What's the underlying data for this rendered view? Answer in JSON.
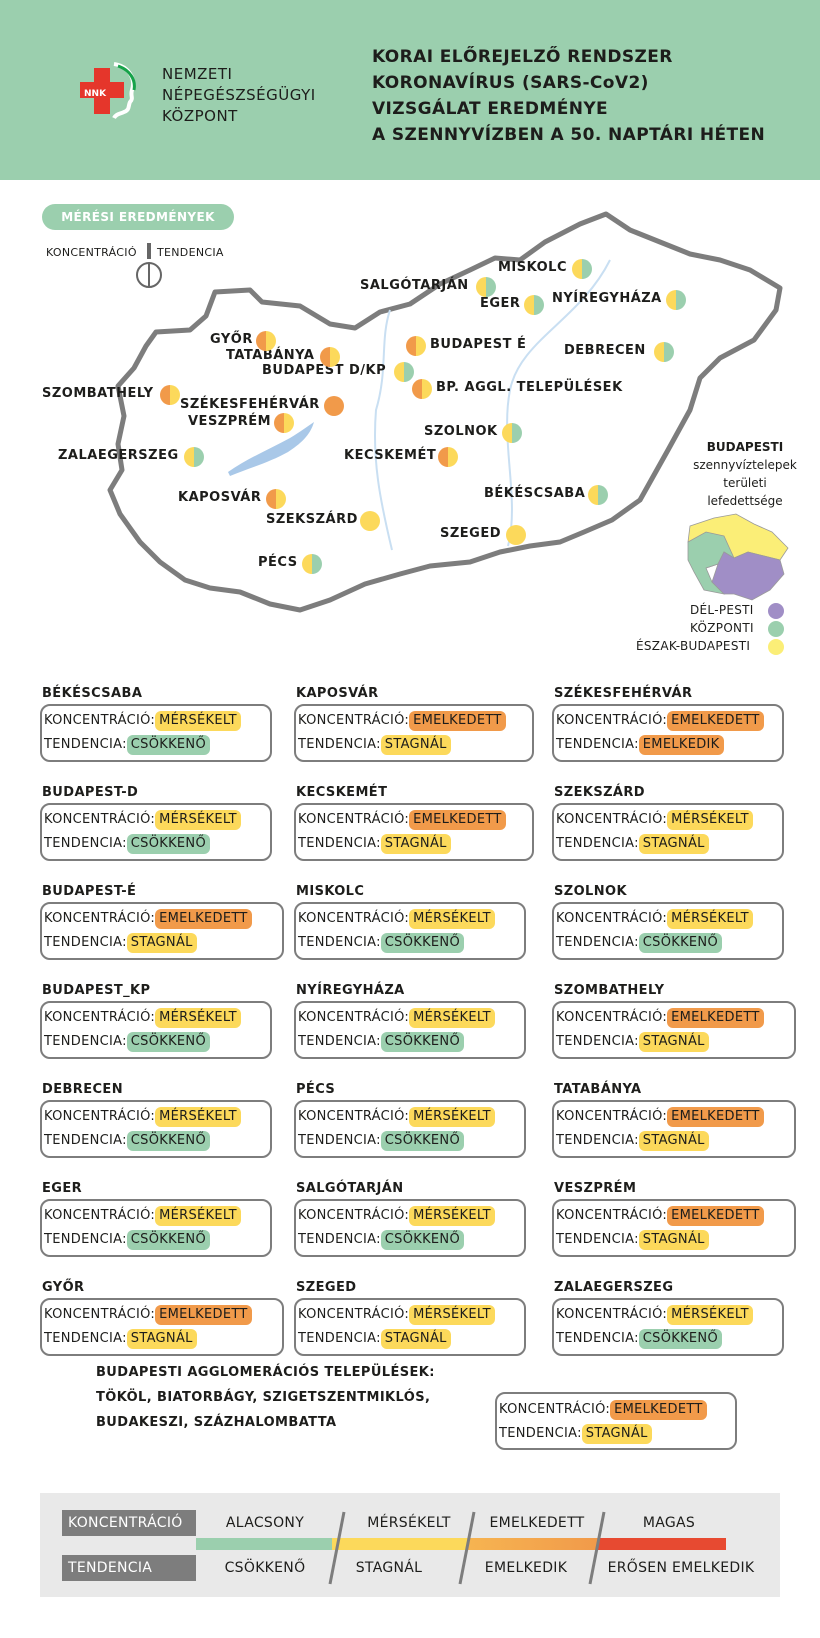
{
  "header": {
    "org_lines": [
      "NEMZETI",
      "NÉPEGÉSZSÉGÜGYI",
      "KÖZPONT"
    ],
    "logo_text": "NNK",
    "title_lines": [
      "KORAI ELŐREJELZŐ RENDSZER",
      "KORONAVÍRUS (SARS-CoV2)",
      "VIZSGÁLAT EREDMÉNYE",
      "A SZENNYVÍZBEN A 50. NAPTÁRI HÉTEN"
    ]
  },
  "map_key": {
    "pill": "MÉRÉSI EREDMÉNYEK",
    "left_label": "KONCENTRÁCIÓ",
    "right_label": "TENDENCIA"
  },
  "colors": {
    "alacsony": "#9bcfae",
    "mersekelt": "#fcd95b",
    "emelkedett": "#f19a4a",
    "magas": "#e74a31",
    "header_green": "#9bcfae",
    "del_pesti": "#a08ec6",
    "kozponti": "#9bcfae",
    "eszak_budapesti": "#fbee77"
  },
  "map_cities": [
    {
      "name": "MISKOLC",
      "c": "mersekelt",
      "t": "alacsony"
    },
    {
      "name": "SALGÓTARJÁN",
      "c": "mersekelt",
      "t": "alacsony"
    },
    {
      "name": "EGER",
      "c": "mersekelt",
      "t": "alacsony"
    },
    {
      "name": "NYÍREGYHÁZA",
      "c": "mersekelt",
      "t": "alacsony"
    },
    {
      "name": "GYŐR",
      "c": "emelkedett",
      "t": "mersekelt"
    },
    {
      "name": "TATABÁNYA",
      "c": "emelkedett",
      "t": "mersekelt"
    },
    {
      "name": "BUDAPEST É",
      "c": "emelkedett",
      "t": "mersekelt"
    },
    {
      "name": "BUDAPEST D/KP",
      "c": "mersekelt",
      "t": "alacsony"
    },
    {
      "name": "DEBRECEN",
      "c": "mersekelt",
      "t": "alacsony"
    },
    {
      "name": "BP. AGGL. TELEPÜLÉSEK",
      "c": "emelkedett",
      "t": "mersekelt"
    },
    {
      "name": "SZOMBATHELY",
      "c": "emelkedett",
      "t": "mersekelt"
    },
    {
      "name": "SZÉKESFEHÉRVÁR",
      "c": "emelkedett",
      "t": "emelkedett"
    },
    {
      "name": "VESZPRÉM",
      "c": "emelkedett",
      "t": "mersekelt"
    },
    {
      "name": "SZOLNOK",
      "c": "mersekelt",
      "t": "alacsony"
    },
    {
      "name": "ZALAEGERSZEG",
      "c": "mersekelt",
      "t": "alacsony"
    },
    {
      "name": "KECSKEMÉT",
      "c": "emelkedett",
      "t": "mersekelt"
    },
    {
      "name": "BÉKÉSCSABA",
      "c": "mersekelt",
      "t": "alacsony"
    },
    {
      "name": "KAPOSVÁR",
      "c": "emelkedett",
      "t": "mersekelt"
    },
    {
      "name": "SZEKSZÁRD",
      "c": "mersekelt",
      "t": "mersekelt"
    },
    {
      "name": "SZEGED",
      "c": "mersekelt",
      "t": "mersekelt"
    },
    {
      "name": "PÉCS",
      "c": "mersekelt",
      "t": "alacsony"
    }
  ],
  "budapest_inset": {
    "title": "BUDAPESTI",
    "lines": [
      "szennyvíztelepek",
      "területi",
      "lefedettsége"
    ],
    "legend": [
      "DÉL-PESTI",
      "KÖZPONTI",
      "ÉSZAK-BUDAPESTI"
    ]
  },
  "row_labels": {
    "conc": "KONCENTRÁCIÓ:",
    "trend": "TENDENCIA:"
  },
  "cards": [
    {
      "name": "BÉKÉSCSABA",
      "conc": "MÉRSÉKELT",
      "trend": "CSÖKKENŐ"
    },
    {
      "name": "KAPOSVÁR",
      "conc": "EMELKEDETT",
      "trend": "STAGNÁL"
    },
    {
      "name": "SZÉKESFEHÉRVÁR",
      "conc": "EMELKEDETT",
      "trend": "EMELKEDIK"
    },
    {
      "name": "BUDAPEST-D",
      "conc": "MÉRSÉKELT",
      "trend": "CSÖKKENŐ"
    },
    {
      "name": "KECSKEMÉT",
      "conc": "EMELKEDETT",
      "trend": "STAGNÁL"
    },
    {
      "name": "SZEKSZÁRD",
      "conc": "MÉRSÉKELT",
      "trend": "STAGNÁL"
    },
    {
      "name": "BUDAPEST-É",
      "conc": "EMELKEDETT",
      "trend": "STAGNÁL"
    },
    {
      "name": "MISKOLC",
      "conc": "MÉRSÉKELT",
      "trend": "CSÖKKENŐ"
    },
    {
      "name": "SZOLNOK",
      "conc": "MÉRSÉKELT",
      "trend": "CSÖKKENŐ"
    },
    {
      "name": "BUDAPEST_KP",
      "conc": "MÉRSÉKELT",
      "trend": "CSÖKKENŐ"
    },
    {
      "name": "NYÍREGYHÁZA",
      "conc": "MÉRSÉKELT",
      "trend": "CSÖKKENŐ"
    },
    {
      "name": "SZOMBATHELY",
      "conc": "EMELKEDETT",
      "trend": "STAGNÁL"
    },
    {
      "name": "DEBRECEN",
      "conc": "MÉRSÉKELT",
      "trend": "CSÖKKENŐ"
    },
    {
      "name": "PÉCS",
      "conc": "MÉRSÉKELT",
      "trend": "CSÖKKENŐ"
    },
    {
      "name": "TATABÁNYA",
      "conc": "EMELKEDETT",
      "trend": "STAGNÁL"
    },
    {
      "name": "EGER",
      "conc": "MÉRSÉKELT",
      "trend": "CSÖKKENŐ"
    },
    {
      "name": "SALGÓTARJÁN",
      "conc": "MÉRSÉKELT",
      "trend": "CSÖKKENŐ"
    },
    {
      "name": "VESZPRÉM",
      "conc": "EMELKEDETT",
      "trend": "STAGNÁL"
    },
    {
      "name": "GYŐR",
      "conc": "EMELKEDETT",
      "trend": "STAGNÁL"
    },
    {
      "name": "SZEGED",
      "conc": "MÉRSÉKELT",
      "trend": "STAGNÁL"
    },
    {
      "name": "ZALAEGERSZEG",
      "conc": "MÉRSÉKELT",
      "trend": "CSÖKKENŐ"
    }
  ],
  "agglomeration": {
    "lines": [
      "BUDAPESTI AGGLOMERÁCIÓS TELEPÜLÉSEK:",
      "TÖKÖL, BIATORBÁGY, SZIGETSZENTMIKLÓS,",
      "BUDAKESZI, SZÁZHALOMBATTA"
    ],
    "conc": "EMELKEDETT",
    "trend": "STAGNÁL"
  },
  "legend": {
    "conc_label": "KONCENTRÁCIÓ",
    "trend_label": "TENDENCIA",
    "conc_levels": [
      "ALACSONY",
      "MÉRSÉKELT",
      "EMELKEDETT",
      "MAGAS"
    ],
    "trend_levels": [
      "CSÖKKENŐ",
      "STAGNÁL",
      "EMELKEDIK",
      "ERŐSEN EMELKEDIK"
    ]
  }
}
